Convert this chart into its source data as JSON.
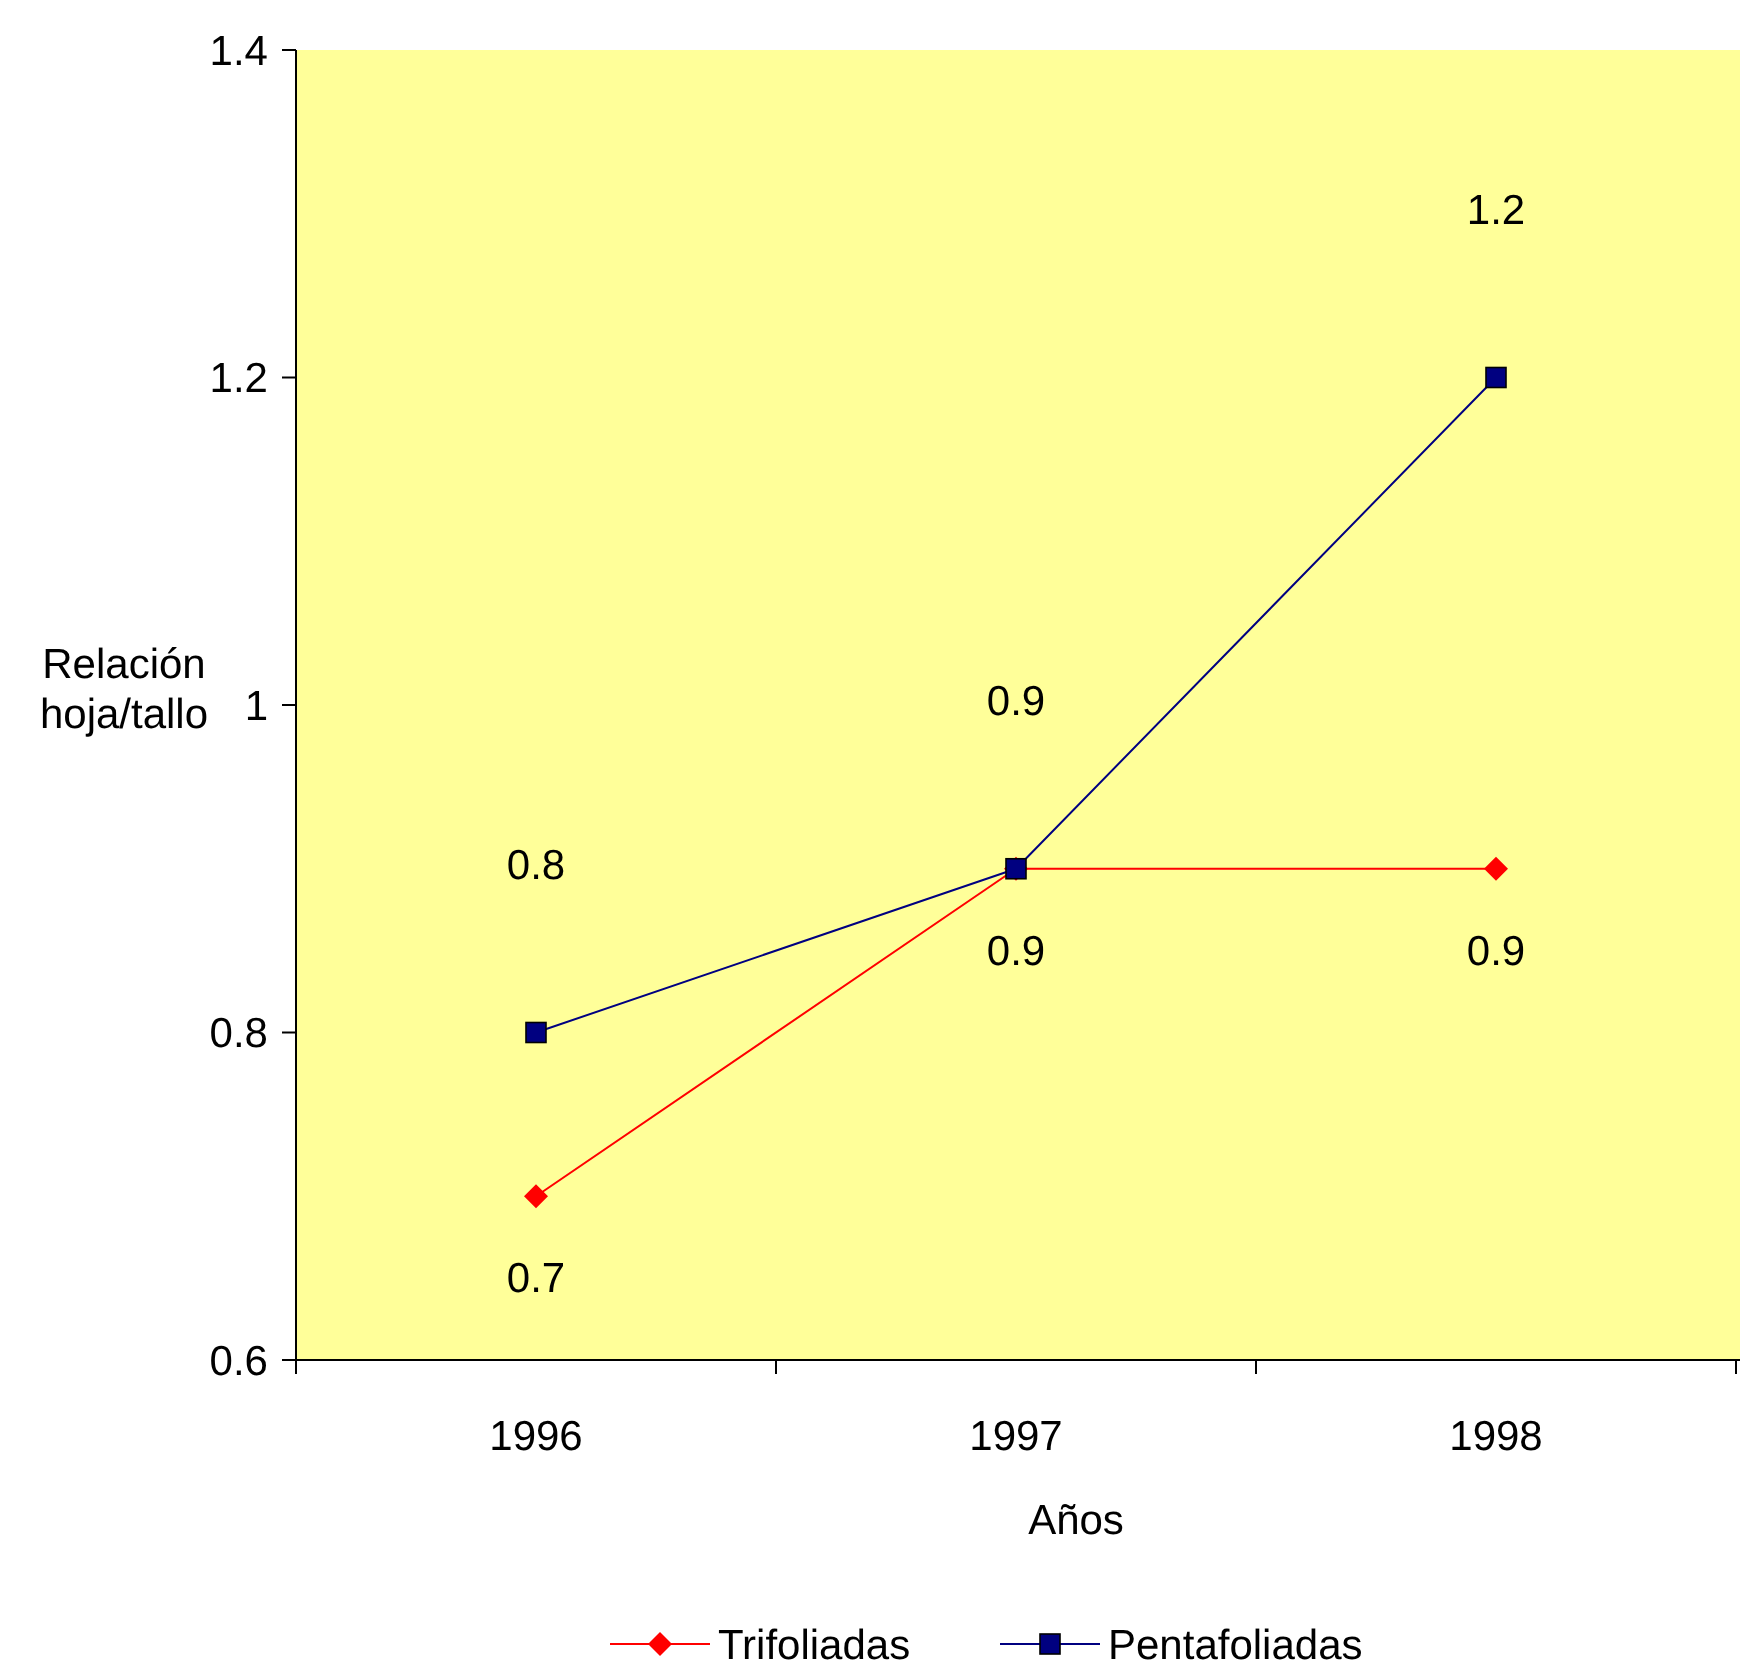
{
  "chart_data": {
    "type": "line",
    "xlabel": "Años",
    "ylabel": "Relación hoja/tallo",
    "categories": [
      "1996",
      "1997",
      "1998"
    ],
    "series": [
      {
        "name": "Trifoliadas",
        "color": "#ff0000",
        "marker": "diamond",
        "values": [
          0.7,
          0.9,
          0.9
        ]
      },
      {
        "name": "Pentafoliadas",
        "color": "#000080",
        "marker": "square",
        "values": [
          0.8,
          0.9,
          1.2
        ]
      }
    ],
    "ylim": [
      0.6,
      1.4
    ],
    "yticks": [
      0.6,
      0.8,
      1,
      1.2,
      1.4
    ],
    "data_labels": true,
    "legend": "bottom",
    "grid": false,
    "line_style": "solid"
  }
}
